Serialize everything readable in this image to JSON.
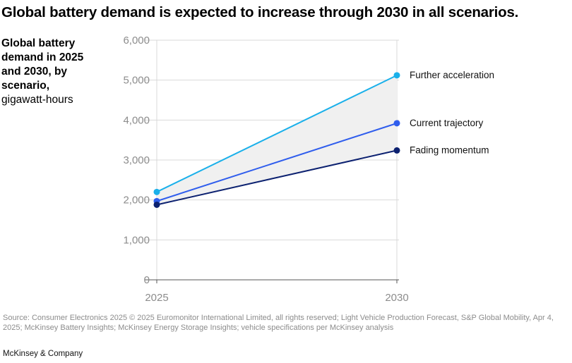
{
  "title": "Global battery demand is expected to increase through 2030 in all scenarios.",
  "ylabel_bold": "Global battery demand in 2025 and 2030, by scenario,",
  "ylabel_unit": "gigawatt-hours",
  "source": "Source: Consumer Electronics 2025 © 2025 Euromonitor International Limited, all rights reserved; Light Vehicle Production Forecast, S&P Global Mobility, Apr 4, 2025; McKinsey Battery Insights; McKinsey Energy Storage Insights; vehicle specifications per McKinsey analysis",
  "brand": "McKinsey & Company",
  "chart_data": {
    "type": "line",
    "x": [
      "2025",
      "2030"
    ],
    "ylim": [
      0,
      6000
    ],
    "yticks": [
      0,
      1000,
      2000,
      3000,
      4000,
      5000,
      6000
    ],
    "ytick_labels": [
      "0",
      "1,000",
      "2,000",
      "3,000",
      "4,000",
      "5,000",
      "6,000"
    ],
    "grid": true,
    "shaded_range": "between Fading momentum and Further acceleration",
    "series": [
      {
        "name": "Further acceleration",
        "values": [
          2200,
          5120
        ],
        "color": "#1ab0ea"
      },
      {
        "name": "Current trajectory",
        "values": [
          1970,
          3920
        ],
        "color": "#2f5ded"
      },
      {
        "name": "Fading momentum",
        "values": [
          1880,
          3240
        ],
        "color": "#0c2170"
      }
    ],
    "shade_color": "#f0f0f0",
    "grid_color": "#d9d9d9"
  }
}
